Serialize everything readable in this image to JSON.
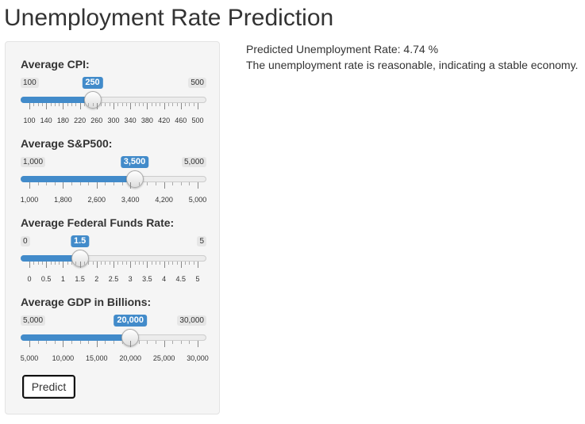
{
  "title": "Unemployment Rate Prediction",
  "colors": {
    "accent": "#428bca",
    "panel_bg": "#f5f5f5",
    "text": "#333333"
  },
  "sliders": [
    {
      "label": "Average CPI:",
      "min_label": "100",
      "max_label": "500",
      "value_label": "250",
      "min": 100,
      "max": 500,
      "value": 250,
      "tick_labels": [
        "100",
        "140",
        "180",
        "220",
        "260",
        "300",
        "340",
        "380",
        "420",
        "460",
        "500"
      ]
    },
    {
      "label": "Average S&P500:",
      "min_label": "1,000",
      "max_label": "5,000",
      "value_label": "3,500",
      "min": 1000,
      "max": 5000,
      "value": 3500,
      "tick_labels": [
        "1,000",
        "1,800",
        "2,600",
        "3,400",
        "4,200",
        "5,000"
      ]
    },
    {
      "label": "Average Federal Funds Rate:",
      "min_label": "0",
      "max_label": "5",
      "value_label": "1.5",
      "min": 0,
      "max": 5,
      "value": 1.5,
      "tick_labels": [
        "0",
        "0.5",
        "1",
        "1.5",
        "2",
        "2.5",
        "3",
        "3.5",
        "4",
        "4.5",
        "5"
      ]
    },
    {
      "label": "Average GDP in Billions:",
      "min_label": "5,000",
      "max_label": "30,000",
      "value_label": "20,000",
      "min": 5000,
      "max": 30000,
      "value": 20000,
      "tick_labels": [
        "5,000",
        "10,000",
        "15,000",
        "20,000",
        "25,000",
        "30,000"
      ]
    }
  ],
  "predict_button": "Predict",
  "output": {
    "prediction_line": "Predicted Unemployment Rate: 4.74 %",
    "assessment_line": "The unemployment rate is reasonable, indicating a stable economy."
  }
}
